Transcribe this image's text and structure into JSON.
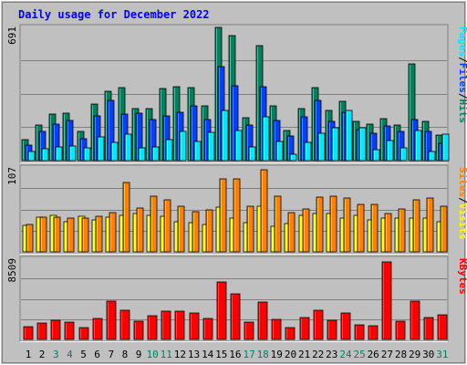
{
  "chart_data": {
    "title": "Daily usage for December 2022",
    "colors": {
      "background": "#c0c0c0",
      "hits": "#00805c",
      "files": "#0040ff",
      "pages": "#00e8ff",
      "visits": "#ffff00",
      "sites": "#ff8000",
      "kbytes": "#ff0000",
      "title": "#0000ff",
      "weekend_day": "#00805c",
      "weekday": "#000000"
    },
    "days": [
      "1",
      "2",
      "3",
      "4",
      "5",
      "6",
      "7",
      "8",
      "9",
      "10",
      "11",
      "12",
      "13",
      "14",
      "15",
      "16",
      "17",
      "18",
      "19",
      "20",
      "21",
      "22",
      "23",
      "24",
      "25",
      "26",
      "27",
      "28",
      "29",
      "30",
      "31"
    ],
    "weekend_days": [
      3,
      4,
      10,
      11,
      17,
      18,
      24,
      25,
      31
    ],
    "panels": [
      {
        "id": "hits-files-pages",
        "type": "bar",
        "scale_label": "691",
        "ylim": [
          0,
          691
        ],
        "legend": [
          {
            "label": "Hits",
            "color": "#00805c"
          },
          {
            "label": "/",
            "color": "#000000"
          },
          {
            "label": "Files",
            "color": "#0040ff"
          },
          {
            "label": "/",
            "color": "#000000"
          },
          {
            "label": "Pages",
            "color": "#00e8ff"
          }
        ],
        "series": [
          {
            "name": "Hits",
            "color": "#00805c",
            "values": [
              107,
              183,
              240,
              245,
              150,
              290,
              357,
              377,
              270,
              267,
              370,
              380,
              377,
              283,
              684,
              645,
              220,
              590,
              280,
              153,
              270,
              377,
              257,
              307,
              200,
              190,
              217,
              185,
              500,
              200,
              130
            ]
          },
          {
            "name": "Files",
            "color": "#0040ff",
            "values": [
              80,
              150,
              190,
              205,
              113,
              230,
              310,
              240,
              245,
              210,
              230,
              250,
              280,
              213,
              485,
              385,
              185,
              380,
              205,
              127,
              225,
              310,
              200,
              250,
              160,
              140,
              180,
              150,
              213,
              150,
              90
            ]
          },
          {
            "name": "Pages",
            "color": "#00e8ff",
            "values": [
              45,
              60,
              70,
              75,
              65,
              120,
              95,
              135,
              65,
              70,
              110,
              150,
              100,
              145,
              260,
              155,
              70,
              225,
              100,
              35,
              95,
              140,
              170,
              260,
              170,
              55,
              105,
              65,
              155,
              45,
              135
            ]
          }
        ]
      },
      {
        "id": "visits-sites",
        "type": "bar",
        "scale_label": "107",
        "ylim": [
          0,
          107
        ],
        "legend": [
          {
            "label": "Visits",
            "color": "#ffff00"
          },
          {
            "label": "/",
            "color": "#000000"
          },
          {
            "label": "Sites",
            "color": "#ff8000"
          }
        ],
        "series": [
          {
            "name": "Visits",
            "color": "#ffff00",
            "values": [
              33,
              44,
              46,
              38,
              45,
              40,
              44,
              46,
              48,
              46,
              45,
              38,
              37,
              35,
              56,
              42,
              37,
              58,
              32,
              36,
              46,
              48,
              48,
              42,
              46,
              40,
              43,
              42,
              43,
              42,
              38
            ]
          },
          {
            "name": "Sites",
            "color": "#ff8000",
            "values": [
              34,
              44,
              44,
              43,
              43,
              45,
              50,
              88,
              55,
              70,
              66,
              58,
              51,
              53,
              92,
              92,
              57,
              103,
              70,
              50,
              54,
              69,
              70,
              68,
              60,
              60,
              48,
              54,
              66,
              68,
              58
            ]
          }
        ]
      },
      {
        "id": "kbytes",
        "type": "bar",
        "scale_label": "8509",
        "ylim": [
          0,
          8509
        ],
        "legend": [
          {
            "label": "KBytes",
            "color": "#ff0000"
          }
        ],
        "series": [
          {
            "name": "KBytes",
            "color": "#ff0000",
            "values": [
              1300,
              1700,
              2000,
              1800,
              1250,
              2200,
              4050,
              3050,
              1900,
              2450,
              2950,
              3000,
              2800,
              2200,
              6050,
              4800,
              1850,
              3900,
              2100,
              1200,
              2300,
              3050,
              2000,
              2800,
              1500,
              1400,
              8100,
              1950,
              4050,
              2300,
              2600
            ]
          }
        ]
      }
    ]
  }
}
